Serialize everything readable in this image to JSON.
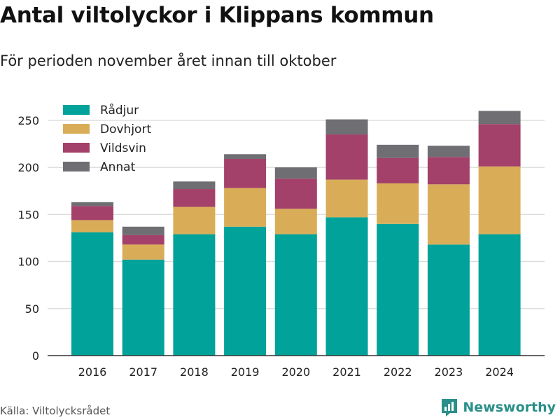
{
  "title": "Antal viltolyckor i Klippans kommun",
  "subtitle": "För perioden november året innan till oktober",
  "source": "Källa: Viltolycksrådet",
  "brand": "Newsworthy",
  "colors": {
    "Rådjur": "#00a29a",
    "Dovhjort": "#d9ad58",
    "Vildsvin": "#a3416a",
    "Annat": "#6e6e73",
    "grid": "#dddddd",
    "axis": "#333333",
    "brand": "#2a8f8a"
  },
  "chart_data": {
    "type": "bar",
    "stacked": true,
    "categories": [
      "2016",
      "2017",
      "2018",
      "2019",
      "2020",
      "2021",
      "2022",
      "2023",
      "2024"
    ],
    "series": [
      {
        "name": "Rådjur",
        "values": [
          131,
          102,
          129,
          137,
          129,
          147,
          140,
          118,
          129
        ]
      },
      {
        "name": "Dovhjort",
        "values": [
          13,
          16,
          29,
          41,
          27,
          40,
          43,
          64,
          72
        ]
      },
      {
        "name": "Vildsvin",
        "values": [
          15,
          10,
          19,
          31,
          32,
          48,
          27,
          29,
          45
        ]
      },
      {
        "name": "Annat",
        "values": [
          4,
          9,
          8,
          5,
          12,
          16,
          14,
          12,
          14
        ]
      }
    ],
    "y_ticks": [
      0,
      50,
      100,
      150,
      200,
      250
    ],
    "ylim": [
      0,
      270
    ],
    "grid": true,
    "legend_position": "top-left"
  }
}
